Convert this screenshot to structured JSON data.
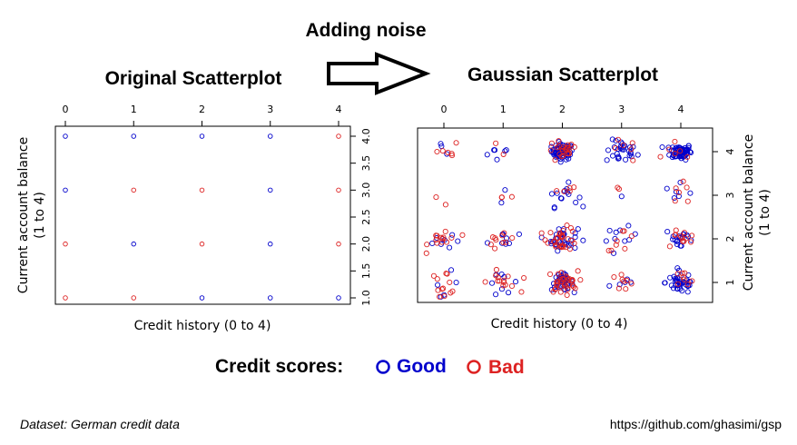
{
  "header": {
    "noise_title": "Adding noise",
    "left_title": "Original Scatterplot",
    "right_title": "Gaussian Scatterplot"
  },
  "legend": {
    "title": "Credit scores:",
    "items": [
      {
        "label": "Good",
        "color": "#0000cc"
      },
      {
        "label": "Bad",
        "color": "#dd2222"
      }
    ]
  },
  "footer": {
    "dataset": "Dataset: German credit data",
    "url": "https://github.com/ghasimi/gsp"
  },
  "chart_data": [
    {
      "type": "scatter",
      "title": "Original Scatterplot",
      "xlabel": "Credit history (0 to 4)",
      "ylabel": "Current account balance (1 to 4)",
      "xlim": [
        0,
        4
      ],
      "ylim": [
        1,
        4
      ],
      "x_ticks": [
        "0",
        "1",
        "2",
        "3",
        "4"
      ],
      "y_ticks": [
        "1.0",
        "1.5",
        "2.0",
        "2.5",
        "3.0",
        "3.5",
        "4.0"
      ],
      "series": [
        {
          "name": "Good",
          "color": "#0000cc",
          "points": [
            [
              0,
              4
            ],
            [
              1,
              4
            ],
            [
              2,
              4
            ],
            [
              3,
              4
            ],
            [
              0,
              3
            ],
            [
              3,
              3
            ],
            [
              1,
              2
            ],
            [
              3,
              2
            ],
            [
              2,
              1
            ],
            [
              3,
              1
            ],
            [
              4,
              1
            ]
          ]
        },
        {
          "name": "Bad",
          "color": "#dd2222",
          "points": [
            [
              4,
              4
            ],
            [
              1,
              3
            ],
            [
              2,
              3
            ],
            [
              4,
              3
            ],
            [
              0,
              2
            ],
            [
              2,
              2
            ],
            [
              4,
              2
            ],
            [
              0,
              1
            ],
            [
              1,
              1
            ]
          ]
        }
      ]
    },
    {
      "type": "scatter",
      "title": "Gaussian Scatterplot",
      "xlabel": "Credit history (0 to 4)",
      "ylabel": "Current account balance (1 to 4)",
      "xlim": [
        -0.4,
        4.4
      ],
      "ylim": [
        0.5,
        4.4
      ],
      "x_ticks": [
        "0",
        "1",
        "2",
        "3",
        "4"
      ],
      "y_ticks": [
        "1",
        "2",
        "3",
        "4"
      ],
      "series": [
        {
          "name": "Good",
          "color": "#0000cc",
          "clusters": [
            {
              "x": 0,
              "y": 4,
              "n": 3
            },
            {
              "x": 1,
              "y": 4,
              "n": 6
            },
            {
              "x": 2,
              "y": 4,
              "n": 70
            },
            {
              "x": 3,
              "y": 4,
              "n": 28
            },
            {
              "x": 4,
              "y": 4,
              "n": 75
            },
            {
              "x": 0,
              "y": 3,
              "n": 0
            },
            {
              "x": 1,
              "y": 3,
              "n": 2
            },
            {
              "x": 2,
              "y": 3,
              "n": 14
            },
            {
              "x": 3,
              "y": 3,
              "n": 1
            },
            {
              "x": 4,
              "y": 3,
              "n": 6
            },
            {
              "x": 0,
              "y": 2,
              "n": 8
            },
            {
              "x": 1,
              "y": 2,
              "n": 8
            },
            {
              "x": 2,
              "y": 2,
              "n": 34
            },
            {
              "x": 3,
              "y": 2,
              "n": 10
            },
            {
              "x": 4,
              "y": 2,
              "n": 18
            },
            {
              "x": 0,
              "y": 1,
              "n": 5
            },
            {
              "x": 1,
              "y": 1,
              "n": 8
            },
            {
              "x": 2,
              "y": 1,
              "n": 42
            },
            {
              "x": 3,
              "y": 1,
              "n": 5
            },
            {
              "x": 4,
              "y": 1,
              "n": 38
            }
          ]
        },
        {
          "name": "Bad",
          "color": "#dd2222",
          "clusters": [
            {
              "x": 0,
              "y": 4,
              "n": 6
            },
            {
              "x": 1,
              "y": 4,
              "n": 2
            },
            {
              "x": 2,
              "y": 4,
              "n": 22
            },
            {
              "x": 3,
              "y": 4,
              "n": 6
            },
            {
              "x": 4,
              "y": 4,
              "n": 6
            },
            {
              "x": 0,
              "y": 3,
              "n": 2
            },
            {
              "x": 1,
              "y": 3,
              "n": 3
            },
            {
              "x": 2,
              "y": 3,
              "n": 5
            },
            {
              "x": 3,
              "y": 3,
              "n": 2
            },
            {
              "x": 4,
              "y": 3,
              "n": 6
            },
            {
              "x": 0,
              "y": 2,
              "n": 14
            },
            {
              "x": 1,
              "y": 2,
              "n": 10
            },
            {
              "x": 2,
              "y": 2,
              "n": 30
            },
            {
              "x": 3,
              "y": 2,
              "n": 8
            },
            {
              "x": 4,
              "y": 2,
              "n": 12
            },
            {
              "x": 0,
              "y": 1,
              "n": 12
            },
            {
              "x": 1,
              "y": 1,
              "n": 14
            },
            {
              "x": 2,
              "y": 1,
              "n": 34
            },
            {
              "x": 3,
              "y": 1,
              "n": 8
            },
            {
              "x": 4,
              "y": 1,
              "n": 8
            }
          ]
        }
      ]
    }
  ]
}
